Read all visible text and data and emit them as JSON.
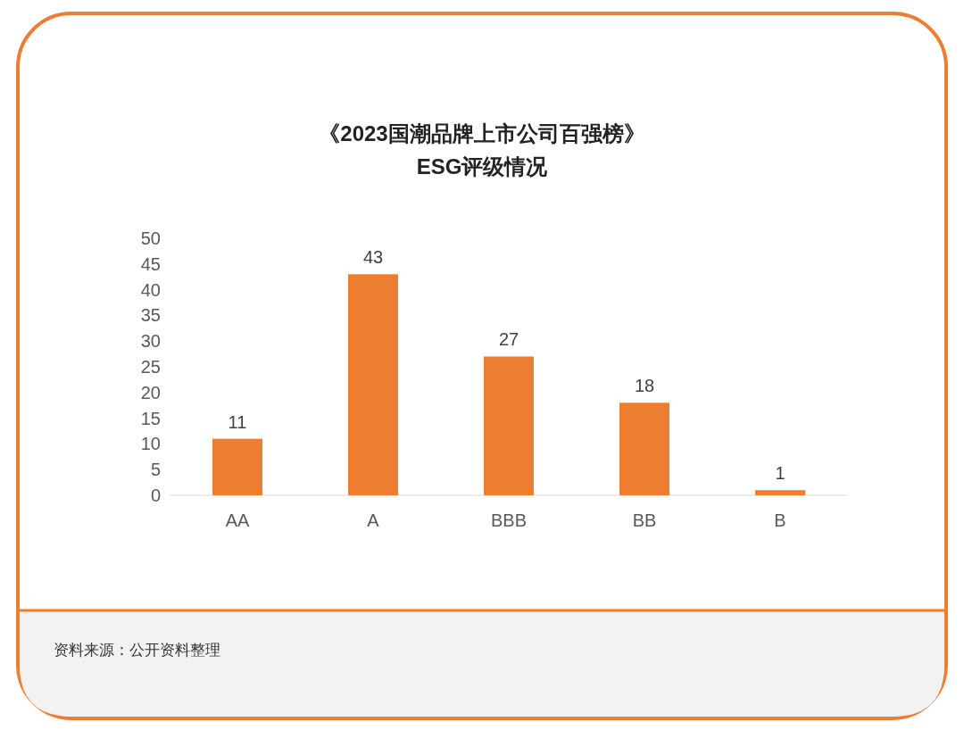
{
  "chart_data": {
    "type": "bar",
    "title": "《2023国潮品牌上市公司百强榜》\nESG评级情况",
    "categories": [
      "AA",
      "A",
      "BBB",
      "BB",
      "B"
    ],
    "values": [
      11,
      43,
      27,
      18,
      1
    ],
    "color": "#ed7d31",
    "ylim": [
      0,
      50
    ],
    "yticks": [
      0,
      5,
      10,
      15,
      20,
      25,
      30,
      35,
      40,
      45,
      50
    ],
    "data_labels": true,
    "grid": false,
    "annotations": [
      "资料来源：公开资料整理"
    ]
  }
}
